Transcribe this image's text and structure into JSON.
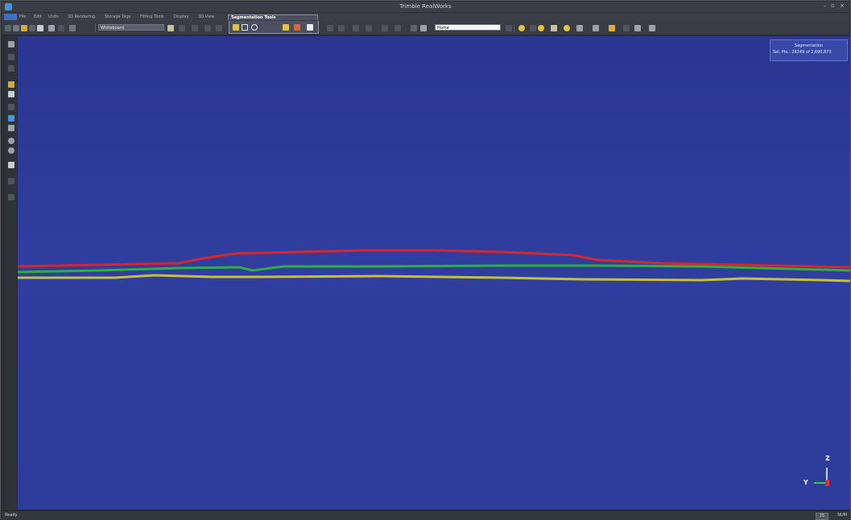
{
  "window": {
    "title": "Trimble RealWorks",
    "controls": "– ▫ ×"
  },
  "menu": {
    "items": [
      "File",
      "Edit",
      "Units",
      "3D Rendering",
      "Storage Tags",
      "Fitting Tools",
      "Display",
      "3D View"
    ],
    "active_tab": "Segmentation Tools"
  },
  "toolbar": {
    "workspace_value": "Whiteboard",
    "view_value": "Home"
  },
  "segmentation_panel": {
    "title": "Segmentation",
    "info": "Sel. Pts.: 26249 of 2,690,873"
  },
  "point_cloud": {
    "profiles": [
      {
        "name": "red-profile",
        "color": "#d8262a"
      },
      {
        "name": "green-profile",
        "color": "#2bb13c"
      },
      {
        "name": "yellow-profile",
        "color": "#c6c232"
      }
    ]
  },
  "axis": {
    "z": "Z",
    "y": "Y",
    "x_color": "#e03030",
    "y_color": "#2fd13f",
    "z_color": "#ffffff"
  },
  "status": {
    "text": "Ready",
    "box": "25",
    "right": "NUM"
  },
  "colors": {
    "background_top": "#2a3690",
    "background_bottom": "#2d3b9b",
    "accent": "#3b72b8"
  }
}
